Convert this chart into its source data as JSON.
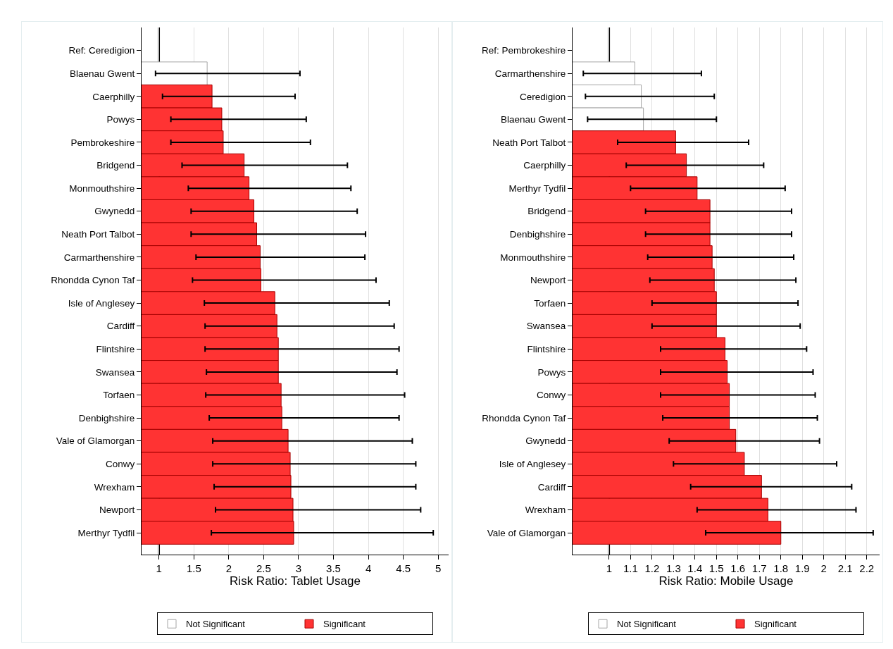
{
  "chart_data": [
    {
      "type": "bar",
      "orientation": "horizontal",
      "xlabel": "Risk Ratio: Tablet Usage",
      "categories": [
        "Ref: Ceredigion",
        "Blaenau Gwent",
        "Caerphilly",
        "Powys",
        "Pembrokeshire",
        "Bridgend",
        "Monmouthshire",
        "Gwynedd",
        "Neath Port Talbot",
        "Carmarthenshire",
        "Rhondda Cynon Taf",
        "Isle of Anglesey",
        "Cardiff",
        "Flintshire",
        "Swansea",
        "Torfaen",
        "Denbighshire",
        "Vale of Glamorgan",
        "Conwy",
        "Wrexham",
        "Newport",
        "Merthyr Tydfil"
      ],
      "series": [
        {
          "name": "Not Significant",
          "color": "#ffffff",
          "values": [
            null,
            1.69,
            null,
            null,
            null,
            null,
            null,
            null,
            null,
            null,
            null,
            null,
            null,
            null,
            null,
            null,
            null,
            null,
            null,
            null,
            null,
            null
          ],
          "errors": [
            null,
            [
              0.95,
              3.02
            ],
            null,
            null,
            null,
            null,
            null,
            null,
            null,
            null,
            null,
            null,
            null,
            null,
            null,
            null,
            null,
            null,
            null,
            null,
            null,
            null
          ]
        },
        {
          "name": "Significant",
          "color": "#ff3333",
          "values": [
            null,
            null,
            1.76,
            1.9,
            1.92,
            2.22,
            2.29,
            2.36,
            2.4,
            2.45,
            2.46,
            2.66,
            2.69,
            2.71,
            2.71,
            2.75,
            2.76,
            2.85,
            2.88,
            2.89,
            2.92,
            2.93
          ],
          "errors": [
            null,
            null,
            [
              1.05,
              2.95
            ],
            [
              1.17,
              3.11
            ],
            [
              1.17,
              3.17
            ],
            [
              1.33,
              3.7
            ],
            [
              1.42,
              3.75
            ],
            [
              1.46,
              3.84
            ],
            [
              1.46,
              3.96
            ],
            [
              1.53,
              3.95
            ],
            [
              1.48,
              4.11
            ],
            [
              1.65,
              4.3
            ],
            [
              1.66,
              4.37
            ],
            [
              1.66,
              4.44
            ],
            [
              1.68,
              4.41
            ],
            [
              1.67,
              4.52
            ],
            [
              1.72,
              4.44
            ],
            [
              1.77,
              4.63
            ],
            [
              1.77,
              4.68
            ],
            [
              1.79,
              4.68
            ],
            [
              1.81,
              4.75
            ],
            [
              1.75,
              4.93
            ]
          ]
        }
      ],
      "xlim": [
        0.75,
        5.15
      ],
      "xticks": [
        1,
        1.5,
        2,
        2.5,
        3,
        3.5,
        4,
        4.5,
        5
      ],
      "grid": "x",
      "legend": "bottom",
      "ref_lines": [
        {
          "axis": "x",
          "value": 1,
          "color": "#000000"
        }
      ]
    },
    {
      "type": "bar",
      "orientation": "horizontal",
      "xlabel": "Risk Ratio: Mobile Usage",
      "categories": [
        "Ref: Pembrokeshire",
        "Carmarthenshire",
        "Ceredigion",
        "Blaenau Gwent",
        "Neath Port Talbot",
        "Caerphilly",
        "Merthyr Tydfil",
        "Bridgend",
        "Denbighshire",
        "Monmouthshire",
        "Newport",
        "Torfaen",
        "Swansea",
        "Flintshire",
        "Powys",
        "Conwy",
        "Rhondda Cynon Taf",
        "Gwynedd",
        "Isle of Anglesey",
        "Cardiff",
        "Wrexham",
        "Vale of Glamorgan"
      ],
      "series": [
        {
          "name": "Not Significant",
          "color": "#ffffff",
          "values": [
            null,
            1.12,
            1.15,
            1.16,
            null,
            null,
            null,
            null,
            null,
            null,
            null,
            null,
            null,
            null,
            null,
            null,
            null,
            null,
            null,
            null,
            null,
            null
          ],
          "errors": [
            null,
            [
              0.88,
              1.43
            ],
            [
              0.89,
              1.49
            ],
            [
              0.9,
              1.5
            ],
            null,
            null,
            null,
            null,
            null,
            null,
            null,
            null,
            null,
            null,
            null,
            null,
            null,
            null,
            null,
            null,
            null,
            null
          ]
        },
        {
          "name": "Significant",
          "color": "#ff3333",
          "values": [
            null,
            null,
            null,
            null,
            1.31,
            1.36,
            1.41,
            1.47,
            1.47,
            1.48,
            1.49,
            1.5,
            1.5,
            1.54,
            1.55,
            1.56,
            1.56,
            1.59,
            1.63,
            1.71,
            1.74,
            1.8
          ],
          "errors": [
            null,
            null,
            null,
            null,
            [
              1.04,
              1.65
            ],
            [
              1.08,
              1.72
            ],
            [
              1.1,
              1.82
            ],
            [
              1.17,
              1.85
            ],
            [
              1.17,
              1.85
            ],
            [
              1.18,
              1.86
            ],
            [
              1.19,
              1.87
            ],
            [
              1.2,
              1.88
            ],
            [
              1.2,
              1.89
            ],
            [
              1.24,
              1.92
            ],
            [
              1.24,
              1.95
            ],
            [
              1.24,
              1.96
            ],
            [
              1.25,
              1.97
            ],
            [
              1.28,
              1.98
            ],
            [
              1.3,
              2.06
            ],
            [
              1.38,
              2.13
            ],
            [
              1.41,
              2.15
            ],
            [
              1.45,
              2.23
            ]
          ]
        }
      ],
      "xlim": [
        0.83,
        2.26
      ],
      "xticks": [
        1,
        1.1,
        1.2,
        1.3,
        1.4,
        1.5,
        1.6,
        1.7,
        1.8,
        1.9,
        2,
        2.1,
        2.2
      ],
      "grid": "x",
      "legend": "bottom",
      "ref_lines": [
        {
          "axis": "x",
          "value": 1,
          "color": "#000000"
        }
      ]
    }
  ]
}
